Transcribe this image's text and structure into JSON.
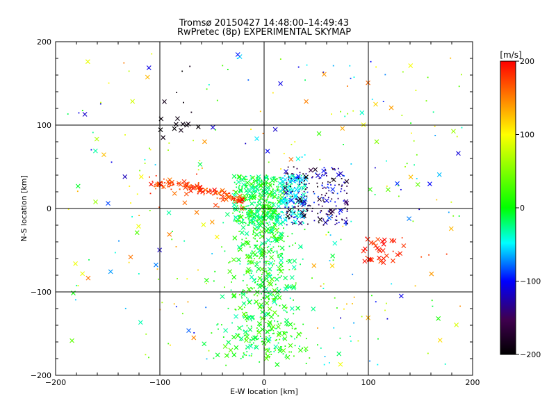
{
  "chart_data": {
    "type": "scatter",
    "title": "Tromsø 20150427 14:48:00–14:49:43",
    "subtitle": "RwPretec (8p) EXPERIMENTAL SKYMAP",
    "xlabel": "E-W location [km]",
    "ylabel": "N-S location [km]",
    "xlim": [
      -200,
      200
    ],
    "ylim": [
      -200,
      200
    ],
    "xticks": [
      -200,
      -100,
      0,
      100,
      200
    ],
    "yticks": [
      -200,
      -100,
      0,
      100,
      200
    ],
    "grid_x": [
      -100,
      0,
      100
    ],
    "grid_y": [
      -100,
      0,
      100
    ],
    "colorbar": {
      "label": "[m/s]",
      "min": -200,
      "max": 200,
      "ticks": [
        200,
        100,
        0,
        -100,
        -200
      ],
      "palette": "rainbow: black (-200) → blue (-100) → cyan → green (0) → yellow (100) → red (200)"
    },
    "markers": {
      "small": "dot",
      "large": "x"
    },
    "point_clusters": [
      {
        "region": "central vertical band",
        "x_range": [
          -20,
          20
        ],
        "y_range": [
          -180,
          40
        ],
        "velocity_m_s": [
          -40,
          40
        ]
      },
      {
        "region": "central core",
        "x_range": [
          -30,
          40
        ],
        "y_range": [
          -20,
          40
        ],
        "velocity_m_s": [
          -60,
          20
        ]
      },
      {
        "region": "north-east cluster",
        "x_range": [
          20,
          80
        ],
        "y_range": [
          -20,
          50
        ],
        "velocity_m_s": [
          -200,
          -80
        ]
      },
      {
        "region": "western arc",
        "x_range": [
          -110,
          -20
        ],
        "y_range": [
          5,
          40
        ],
        "velocity_m_s": [
          150,
          200
        ]
      },
      {
        "region": "south-east cluster",
        "x_range": [
          95,
          130
        ],
        "y_range": [
          -65,
          -35
        ],
        "velocity_m_s": [
          170,
          200
        ]
      },
      {
        "region": "north-west sparse",
        "x_range": [
          -100,
          -60
        ],
        "y_range": [
          90,
          110
        ],
        "velocity_m_s": [
          -200,
          -180
        ]
      }
    ]
  }
}
